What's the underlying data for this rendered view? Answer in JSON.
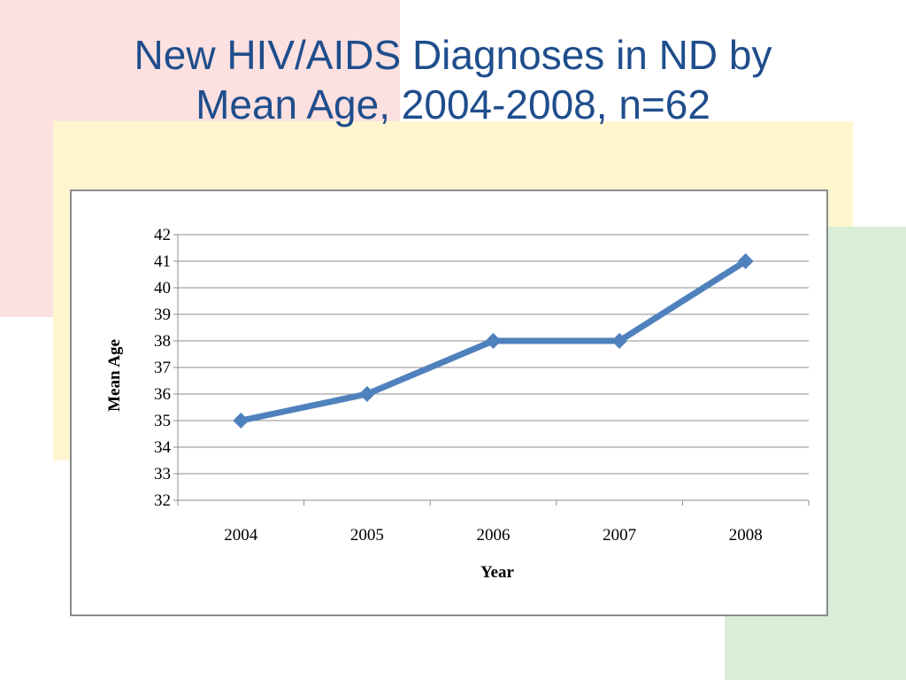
{
  "slide": {
    "title_line1": "New HIV/AIDS Diagnoses in ND by",
    "title_line2": "Mean Age, 2004-2008, n=62"
  },
  "colors": {
    "title": "#1f4e8c",
    "series_line": "#4f81bd",
    "gridline": "#8c8c8c",
    "deco_pink": "#fde1e1",
    "deco_yellow": "#fff6cf",
    "deco_green": "#d9eed6"
  },
  "chart_data": {
    "type": "line",
    "title": "",
    "xlabel": "Year",
    "ylabel": "Mean Age",
    "categories": [
      "2004",
      "2005",
      "2006",
      "2007",
      "2008"
    ],
    "series": [
      {
        "values": [
          35,
          36,
          38,
          38,
          41
        ],
        "marker": "diamond"
      }
    ],
    "ylim": [
      32,
      42
    ],
    "yticks": [
      32,
      33,
      34,
      35,
      36,
      37,
      38,
      39,
      40,
      41,
      42
    ],
    "grid": true,
    "legend": "none"
  }
}
